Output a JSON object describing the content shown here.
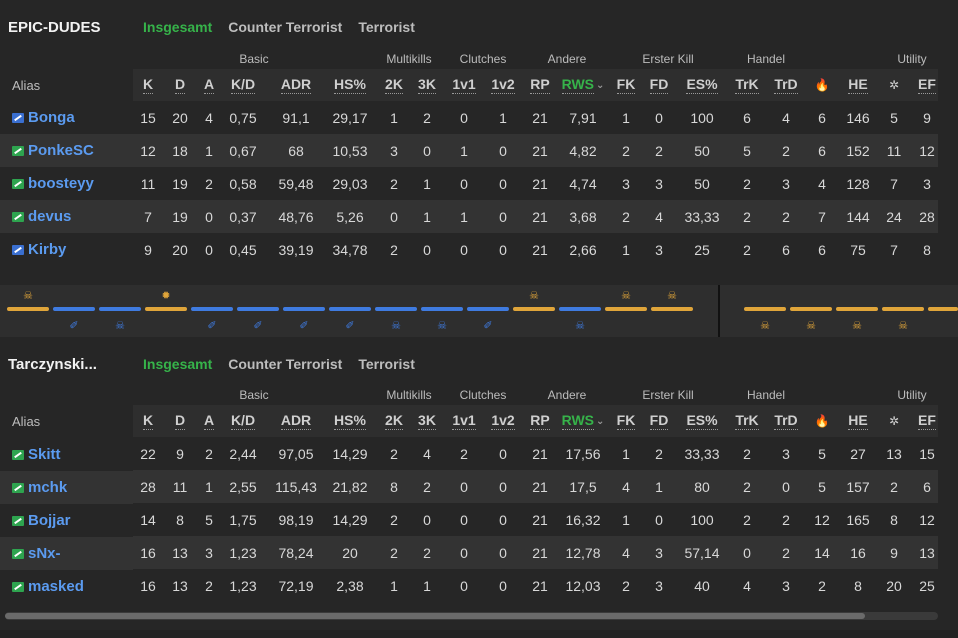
{
  "columns": [
    {
      "label": "K"
    },
    {
      "label": "D"
    },
    {
      "label": "A"
    },
    {
      "label": "K/D"
    },
    {
      "label": "ADR"
    },
    {
      "label": "HS%"
    },
    {
      "label": "2K"
    },
    {
      "label": "3K"
    },
    {
      "label": "1v1"
    },
    {
      "label": "1v2"
    },
    {
      "label": "RP"
    },
    {
      "label": "RWS",
      "sort": "⌄"
    },
    {
      "label": "FK"
    },
    {
      "label": "FD"
    },
    {
      "label": "ES%"
    },
    {
      "label": "TrK"
    },
    {
      "label": "TrD"
    },
    {
      "label": "",
      "icon": "molotov-icon"
    },
    {
      "label": "HE"
    },
    {
      "label": "",
      "icon": "flash-icon"
    },
    {
      "label": "EF"
    }
  ],
  "groups": [
    "Basic",
    "Multikills",
    "Clutches",
    "Andere",
    "Erster Kill",
    "Handel",
    "Utility"
  ],
  "alias_label": "Alias",
  "tabs": [
    "Insgesamt",
    "Counter Terrorist",
    "Terrorist"
  ],
  "teams": [
    {
      "name": "EPIC-DUDES",
      "players": [
        {
          "name": "Bonga",
          "flag": "eu",
          "stats": [
            "15",
            "20",
            "4",
            "0,75",
            "91,1",
            "29,17",
            "1",
            "2",
            "0",
            "1",
            "21",
            "7,91",
            "1",
            "0",
            "100",
            "6",
            "4",
            "6",
            "146",
            "5",
            "9"
          ]
        },
        {
          "name": "PonkeSC",
          "flag": "sv",
          "stats": [
            "12",
            "18",
            "1",
            "0,67",
            "68",
            "10,53",
            "3",
            "0",
            "1",
            "0",
            "21",
            "4,82",
            "2",
            "2",
            "50",
            "5",
            "2",
            "6",
            "152",
            "11",
            "12"
          ]
        },
        {
          "name": "boosteyy",
          "flag": "sv",
          "stats": [
            "11",
            "19",
            "2",
            "0,58",
            "59,48",
            "29,03",
            "2",
            "1",
            "0",
            "0",
            "21",
            "4,74",
            "3",
            "3",
            "50",
            "2",
            "3",
            "4",
            "128",
            "7",
            "3"
          ]
        },
        {
          "name": "devus",
          "flag": "sv",
          "stats": [
            "7",
            "19",
            "0",
            "0,37",
            "48,76",
            "5,26",
            "0",
            "1",
            "1",
            "0",
            "21",
            "3,68",
            "2",
            "4",
            "33,33",
            "2",
            "2",
            "7",
            "144",
            "24",
            "28"
          ]
        },
        {
          "name": "Kirby",
          "flag": "eu",
          "stats": [
            "9",
            "20",
            "0",
            "0,45",
            "39,19",
            "34,78",
            "2",
            "0",
            "0",
            "0",
            "21",
            "2,66",
            "1",
            "3",
            "25",
            "2",
            "6",
            "6",
            "75",
            "7",
            "8"
          ]
        }
      ]
    },
    {
      "name": "Tarczynski...",
      "players": [
        {
          "name": "Skitt",
          "flag": "sv",
          "stats": [
            "22",
            "9",
            "2",
            "2,44",
            "97,05",
            "14,29",
            "2",
            "4",
            "2",
            "0",
            "21",
            "17,56",
            "1",
            "2",
            "33,33",
            "2",
            "3",
            "5",
            "27",
            "13",
            "15"
          ]
        },
        {
          "name": "mchk",
          "flag": "sv",
          "stats": [
            "28",
            "11",
            "1",
            "2,55",
            "115,43",
            "21,82",
            "8",
            "2",
            "0",
            "0",
            "21",
            "17,5",
            "4",
            "1",
            "80",
            "2",
            "0",
            "5",
            "157",
            "2",
            "6"
          ]
        },
        {
          "name": "Bojjar",
          "flag": "sv",
          "stats": [
            "14",
            "8",
            "5",
            "1,75",
            "98,19",
            "14,29",
            "2",
            "0",
            "0",
            "0",
            "21",
            "16,32",
            "1",
            "0",
            "100",
            "2",
            "2",
            "12",
            "165",
            "8",
            "12"
          ]
        },
        {
          "name": "sNx-",
          "flag": "sv",
          "stats": [
            "16",
            "13",
            "3",
            "1,23",
            "78,24",
            "20",
            "2",
            "2",
            "0",
            "0",
            "21",
            "12,78",
            "4",
            "3",
            "57,14",
            "0",
            "2",
            "14",
            "16",
            "9",
            "13"
          ]
        },
        {
          "name": "masked",
          "flag": "sv",
          "stats": [
            "16",
            "13",
            "2",
            "1,23",
            "72,19",
            "2,38",
            "1",
            "1",
            "0",
            "0",
            "21",
            "12,03",
            "2",
            "3",
            "40",
            "4",
            "3",
            "2",
            "8",
            "20",
            "25"
          ]
        }
      ]
    }
  ],
  "rounds_first_half": [
    {
      "winner": "t",
      "top_icon": "skull-icon",
      "bottom_icon": ""
    },
    {
      "winner": "ct",
      "top_icon": "",
      "bottom_icon": "defuse-icon"
    },
    {
      "winner": "ct",
      "top_icon": "",
      "bottom_icon": "skull-icon"
    },
    {
      "winner": "t",
      "top_icon": "bomb-icon",
      "bottom_icon": ""
    },
    {
      "winner": "ct",
      "top_icon": "",
      "bottom_icon": "defuse-icon"
    },
    {
      "winner": "ct",
      "top_icon": "",
      "bottom_icon": "defuse-icon"
    },
    {
      "winner": "ct",
      "top_icon": "",
      "bottom_icon": "defuse-icon"
    },
    {
      "winner": "ct",
      "top_icon": "",
      "bottom_icon": "defuse-icon"
    },
    {
      "winner": "ct",
      "top_icon": "",
      "bottom_icon": "skull-icon"
    },
    {
      "winner": "ct",
      "top_icon": "",
      "bottom_icon": "skull-icon"
    },
    {
      "winner": "ct",
      "top_icon": "",
      "bottom_icon": "defuse-icon"
    },
    {
      "winner": "t",
      "top_icon": "skull-icon",
      "bottom_icon": ""
    },
    {
      "winner": "ct",
      "top_icon": "",
      "bottom_icon": "skull-icon"
    },
    {
      "winner": "t",
      "top_icon": "skull-icon",
      "bottom_icon": ""
    },
    {
      "winner": "t",
      "top_icon": "skull-icon",
      "bottom_icon": ""
    }
  ],
  "rounds_second_half": [
    {
      "winner": "t",
      "top_icon": "",
      "bottom_icon": "skull-icon"
    },
    {
      "winner": "t",
      "top_icon": "",
      "bottom_icon": "skull-icon"
    },
    {
      "winner": "t",
      "top_icon": "",
      "bottom_icon": "skull-icon"
    },
    {
      "winner": "t",
      "top_icon": "",
      "bottom_icon": "skull-icon"
    },
    {
      "winner": "t",
      "top_icon": "",
      "bottom_icon": ""
    }
  ],
  "colors": {
    "t": "#e0a53a",
    "ct": "#3f7be0",
    "active_tab": "#36b34a",
    "player_link": "#5b9bf0"
  }
}
